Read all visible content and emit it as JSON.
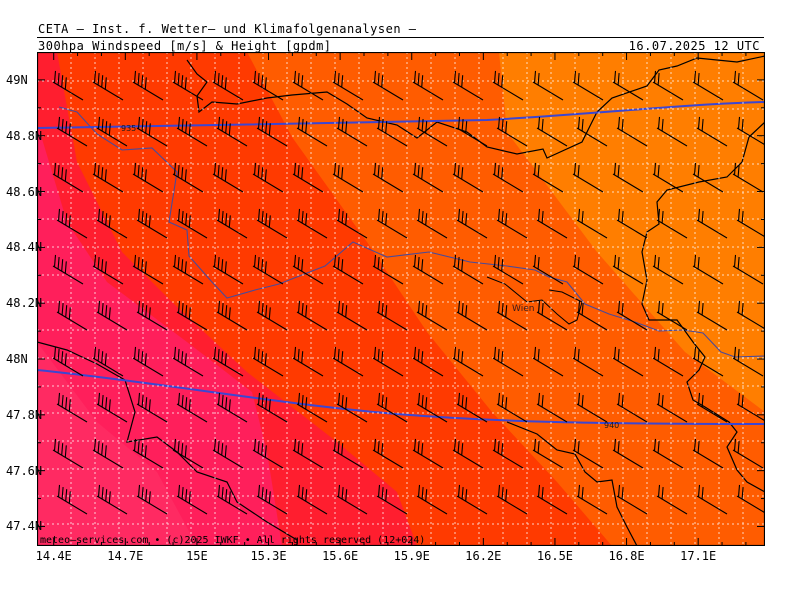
{
  "header": {
    "line1": "CETA – Inst. f. Wetter– und Klimafolgenanalysen –",
    "line2_left": "300hpa Windspeed [m/s] & Height [gpdm]",
    "line2_right": "16.07.2025 12 UTC"
  },
  "footer": {
    "credit": "meteo–services.com • (c)2025 IWKF • All rights reserved (12+024)"
  },
  "map": {
    "city_label": "Wien",
    "contours": [
      {
        "label": "935",
        "color": "#3c46d2"
      },
      {
        "label": "940",
        "color": "#3c46d2"
      }
    ],
    "x_ticks": [
      "14.4E",
      "14.7E",
      "15E",
      "15.3E",
      "15.6E",
      "15.9E",
      "16.2E",
      "16.5E",
      "16.8E",
      "17.1E"
    ],
    "y_ticks": [
      "49N",
      "48.8N",
      "48.6N",
      "48.4N",
      "48.2N",
      "48N",
      "47.8N",
      "47.6N",
      "47.4N"
    ],
    "x_range": [
      14.33,
      17.38
    ],
    "y_range": [
      47.33,
      49.1
    ],
    "shading_colors": [
      "#ff1f5b",
      "#ff1e2f",
      "#ff3a00",
      "#ff5c00",
      "#ff7e00"
    ],
    "grid": true,
    "barb_color": "#000000"
  }
}
